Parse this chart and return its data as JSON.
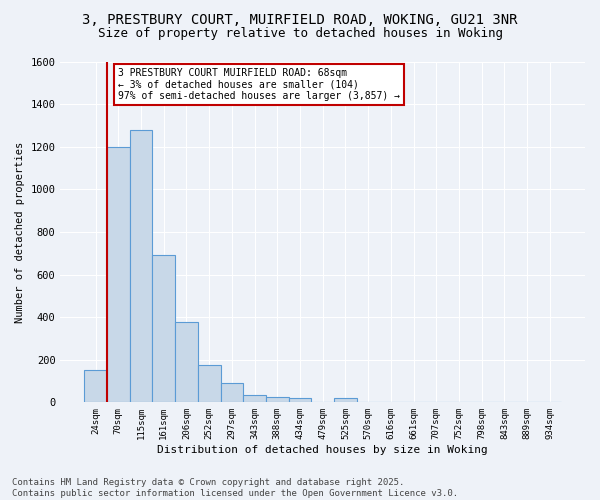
{
  "title_line1": "3, PRESTBURY COURT, MUIRFIELD ROAD, WOKING, GU21 3NR",
  "title_line2": "Size of property relative to detached houses in Woking",
  "xlabel": "Distribution of detached houses by size in Woking",
  "ylabel": "Number of detached properties",
  "bin_labels": [
    "24sqm",
    "70sqm",
    "115sqm",
    "161sqm",
    "206sqm",
    "252sqm",
    "297sqm",
    "343sqm",
    "388sqm",
    "434sqm",
    "479sqm",
    "525sqm",
    "570sqm",
    "616sqm",
    "661sqm",
    "707sqm",
    "752sqm",
    "798sqm",
    "843sqm",
    "889sqm",
    "934sqm"
  ],
  "bar_heights": [
    150,
    1200,
    1280,
    690,
    375,
    175,
    93,
    35,
    25,
    20,
    0,
    20,
    0,
    0,
    0,
    0,
    0,
    0,
    0,
    0,
    0
  ],
  "bar_color": "#c8d8e8",
  "bar_edge_color": "#5b9bd5",
  "vline_color": "#c00000",
  "annotation_text": "3 PRESTBURY COURT MUIRFIELD ROAD: 68sqm\n← 3% of detached houses are smaller (104)\n97% of semi-detached houses are larger (3,857) →",
  "annotation_box_color": "#ffffff",
  "annotation_box_edge": "#c00000",
  "ylim": [
    0,
    1600
  ],
  "yticks": [
    0,
    200,
    400,
    600,
    800,
    1000,
    1200,
    1400,
    1600
  ],
  "footnote": "Contains HM Land Registry data © Crown copyright and database right 2025.\nContains public sector information licensed under the Open Government Licence v3.0.",
  "bg_color": "#eef2f8",
  "plot_bg_color": "#eef2f8",
  "grid_color": "#ffffff",
  "title_fontsize": 10,
  "subtitle_fontsize": 9,
  "footnote_fontsize": 6.5
}
